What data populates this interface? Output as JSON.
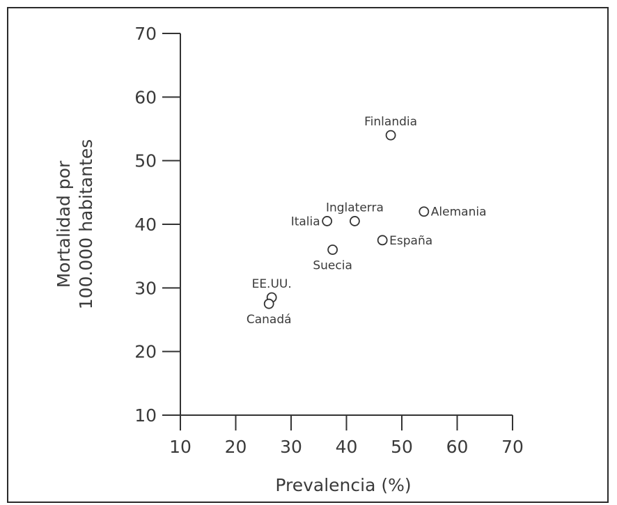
{
  "chart_data": {
    "type": "scatter",
    "xlabel": "Prevalencia (%)",
    "ylabel_lines": [
      "Mortalidad por",
      "100.000 habitantes"
    ],
    "xlim": [
      10,
      70
    ],
    "ylim": [
      10,
      70
    ],
    "xticks": [
      10,
      20,
      30,
      40,
      50,
      60,
      70
    ],
    "yticks": [
      10,
      20,
      30,
      40,
      50,
      60,
      70
    ],
    "grid": false,
    "points": [
      {
        "label": "Finlandia",
        "x": 48,
        "y": 54,
        "label_pos": "above"
      },
      {
        "label": "Alemania",
        "x": 54,
        "y": 42,
        "label_pos": "right"
      },
      {
        "label": "Inglaterra",
        "x": 41.5,
        "y": 40.5,
        "label_pos": "above"
      },
      {
        "label": "Italia",
        "x": 36.5,
        "y": 40.5,
        "label_pos": "left"
      },
      {
        "label": "España",
        "x": 46.5,
        "y": 37.5,
        "label_pos": "right"
      },
      {
        "label": "Suecia",
        "x": 37.5,
        "y": 36,
        "label_pos": "below"
      },
      {
        "label": "EE.UU.",
        "x": 26.5,
        "y": 28.5,
        "label_pos": "above"
      },
      {
        "label": "Canadá",
        "x": 26,
        "y": 27.5,
        "label_pos": "below"
      }
    ]
  }
}
